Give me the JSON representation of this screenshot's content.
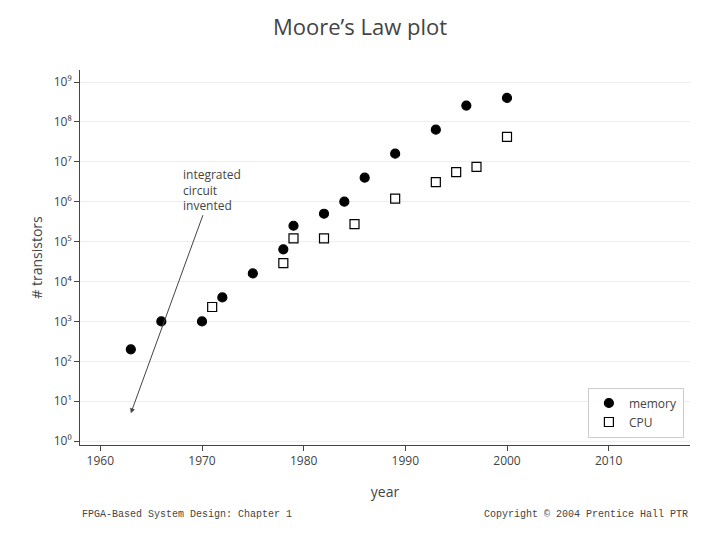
{
  "chart_data": {
    "type": "scatter",
    "title": "Moore’s Law plot",
    "x_label": "year",
    "y_label": "# transistors",
    "log": "y",
    "grid": true,
    "legend": "lower right",
    "xlim": [
      1958,
      2018
    ],
    "xticks": [
      1960,
      1970,
      1980,
      1990,
      2000,
      2010
    ],
    "ylim": [
      0.8,
      2000000000
    ],
    "yticks": [
      {
        "value": 1,
        "label": "10⁰"
      },
      {
        "value": 10,
        "label": "10¹"
      },
      {
        "value": 100,
        "label": "10²"
      },
      {
        "value": 1000,
        "label": "10³"
      },
      {
        "value": 10000,
        "label": "10⁴"
      },
      {
        "value": 100000,
        "label": "10⁵"
      },
      {
        "value": 1000000,
        "label": "10⁶"
      },
      {
        "value": 10000000,
        "label": "10⁷"
      },
      {
        "value": 100000000,
        "label": "10⁸"
      },
      {
        "value": 1000000000,
        "label": "10⁹"
      }
    ],
    "series": [
      {
        "name": "memory",
        "color": "#000000",
        "marker": "circle",
        "x": [
          1963,
          1966,
          1970,
          1972,
          1975,
          1978,
          1979,
          1982,
          1984,
          1986,
          1989,
          1993,
          1996,
          2000
        ],
        "values": [
          200,
          1000,
          1000,
          4000,
          16000,
          64000,
          250000,
          500000,
          1000000,
          4000000,
          16000000,
          64000000,
          256000000,
          400000000
        ]
      },
      {
        "name": "CPU",
        "color": "#000000",
        "marker": "square-open",
        "x": [
          1971,
          1978,
          1979,
          1982,
          1985,
          1989,
          1993,
          1995,
          1997,
          2000
        ],
        "values": [
          2300,
          29000,
          120000,
          120000,
          275000,
          1200000,
          3100000,
          5500000,
          7500000,
          42000000
        ]
      }
    ],
    "annotations": [
      {
        "text": "integrated\ncircuit\ninvented",
        "x": 1963,
        "y": 5,
        "text_x": 1971,
        "text_y": 2000000
      }
    ],
    "footer": [
      "FPGA-Based System Design: Chapter 1",
      "Copyright © 2004 Prentice Hall PTR"
    ]
  }
}
